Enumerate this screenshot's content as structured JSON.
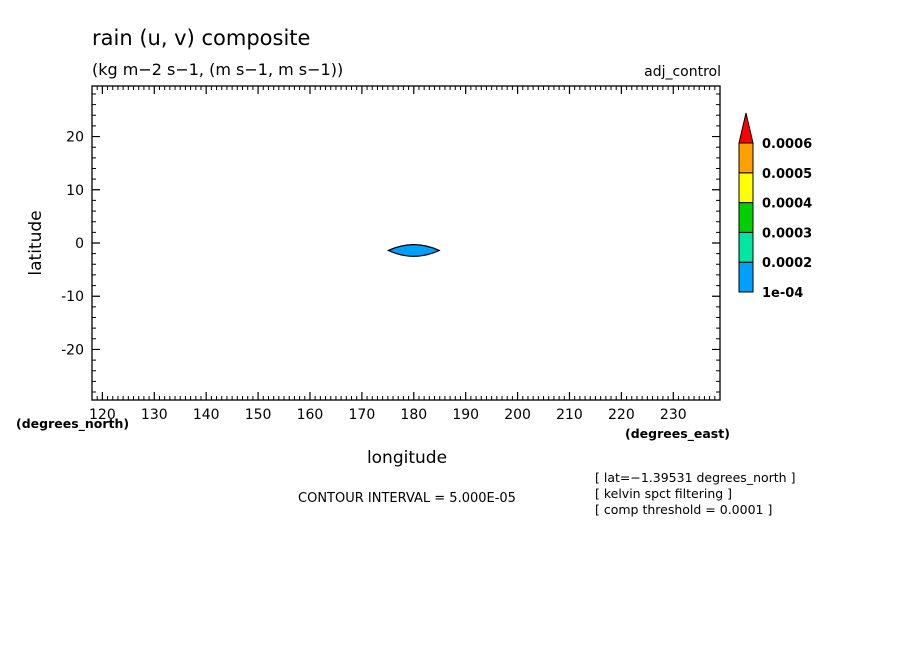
{
  "chart_data": {
    "type": "contour",
    "title": "rain (u, v) composite",
    "subtitle": "(kg m−2 s−1, (m s−1, m s−1))",
    "dataset_label": "adj_control",
    "xlabel": "longitude",
    "ylabel": "latitude",
    "x_units": "(degrees_east)",
    "y_units": "(degrees_north)",
    "xlim": [
      118,
      239
    ],
    "ylim": [
      -29.5,
      29.5
    ],
    "x_ticks": [
      120,
      130,
      140,
      150,
      160,
      170,
      180,
      190,
      200,
      210,
      220,
      230
    ],
    "y_ticks": [
      20,
      10,
      0,
      -10,
      -20
    ],
    "contour_interval_text": "CONTOUR INTERVAL = 5.000E-05",
    "notes": [
      "[ lat=−1.39531 degrees_north ]",
      "[ kelvin spct filtering ]",
      "[ comp threshold = 0.0001 ]"
    ],
    "colorbar": {
      "labels": [
        "0.0006",
        "0.0005",
        "0.0004",
        "0.0003",
        "0.0002",
        "1e-04"
      ],
      "levels": [
        0.0001,
        0.0002,
        0.0003,
        0.0004,
        0.0005,
        0.0006
      ],
      "colors": [
        "#00a0ff",
        "#00e8a0",
        "#00d000",
        "#ffff00",
        "#ffa000",
        "#ff0000"
      ]
    },
    "regions": [
      {
        "level_min": 0.0001,
        "level_max": 0.0002,
        "color": "#00a0ff",
        "center_lon": 180,
        "center_lat": -1.4,
        "half_width_lon": 4.9,
        "half_height_lat": 1.1
      }
    ]
  }
}
